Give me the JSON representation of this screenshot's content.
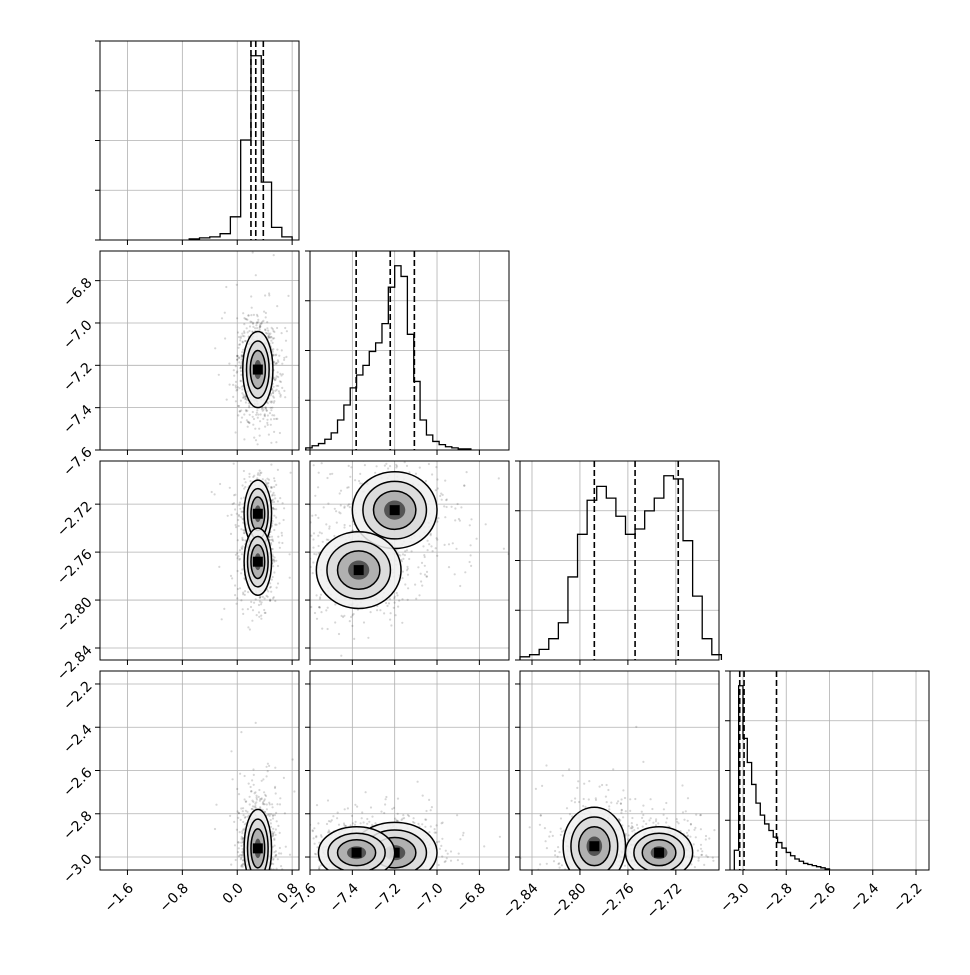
{
  "chart_data": {
    "type": "corner",
    "grid": true,
    "parameters": [
      {
        "range": [
          -2.0,
          0.9
        ],
        "ticks": [
          -1.6,
          -0.8,
          0.0,
          0.8
        ],
        "tick_labels": [
          "−1.6",
          "−0.8",
          "0.0",
          "0.8"
        ],
        "quantiles": [
          0.2,
          0.27,
          0.38
        ],
        "histogram": {
          "bins": [
            -0.7,
            -0.55,
            -0.4,
            -0.25,
            -0.1,
            0.05,
            0.2,
            0.35,
            0.5,
            0.65
          ],
          "counts": [
            1,
            2,
            3,
            6,
            22,
            95,
            175,
            55,
            12,
            3
          ],
          "peak": 175
        }
      },
      {
        "range": [
          -7.6,
          -6.66
        ],
        "ticks": [
          -7.6,
          -7.4,
          -7.2,
          -7.0,
          -6.8
        ],
        "tick_labels": [
          "−7.6",
          "−7.4",
          "−7.2",
          "−7.0",
          "−6.8"
        ],
        "quantiles": [
          -7.382,
          -7.221,
          -7.107
        ],
        "histogram": {
          "bins": [
            -7.62,
            -7.59,
            -7.56,
            -7.53,
            -7.5,
            -7.47,
            -7.44,
            -7.41,
            -7.38,
            -7.35,
            -7.32,
            -7.29,
            -7.26,
            -7.23,
            -7.2,
            -7.17,
            -7.14,
            -7.11,
            -7.08,
            -7.05,
            -7.02,
            -6.99,
            -6.96,
            -6.93,
            -6.9,
            -6.87
          ],
          "counts": [
            2,
            4,
            6,
            10,
            16,
            28,
            42,
            58,
            70,
            79,
            92,
            100,
            118,
            152,
            172,
            162,
            108,
            64,
            28,
            14,
            8,
            5,
            3,
            2,
            1,
            1
          ],
          "peak": 172
        }
      },
      {
        "range": [
          -2.85,
          -2.684
        ],
        "ticks": [
          -2.84,
          -2.8,
          -2.76,
          -2.72
        ],
        "tick_labels": [
          "−2.84",
          "−2.80",
          "−2.76",
          "−2.72"
        ],
        "quantiles": [
          -2.788,
          -2.754,
          -2.718
        ],
        "histogram": {
          "bins": [
            -2.85,
            -2.842,
            -2.834,
            -2.826,
            -2.818,
            -2.81,
            -2.802,
            -2.794,
            -2.786,
            -2.778,
            -2.77,
            -2.762,
            -2.754,
            -2.746,
            -2.738,
            -2.73,
            -2.722,
            -2.714,
            -2.706,
            -2.698,
            -2.69
          ],
          "counts": [
            3,
            5,
            10,
            20,
            35,
            78,
            118,
            150,
            163,
            152,
            135,
            118,
            123,
            140,
            152,
            173,
            170,
            112,
            60,
            20,
            5
          ],
          "peak": 173
        }
      },
      {
        "range": [
          -3.06,
          -2.14
        ],
        "ticks": [
          -3.0,
          -2.8,
          -2.6,
          -2.4,
          -2.2
        ],
        "tick_labels": [
          "−3.0",
          "−2.8",
          "−2.6",
          "−2.4",
          "−2.2"
        ],
        "quantiles": [
          -3.015,
          -2.995,
          -2.845
        ],
        "histogram": {
          "bins": [
            -3.04,
            -3.02,
            -3.0,
            -2.98,
            -2.96,
            -2.94,
            -2.92,
            -2.9,
            -2.88,
            -2.86,
            -2.84,
            -2.82,
            -2.8,
            -2.78,
            -2.76,
            -2.74,
            -2.72,
            -2.7,
            -2.68,
            -2.66,
            -2.64,
            -2.62
          ],
          "counts": [
            18,
            168,
            120,
            98,
            78,
            61,
            50,
            42,
            36,
            30,
            25,
            20,
            16,
            13,
            10,
            8,
            6,
            5,
            4,
            3,
            2,
            1
          ],
          "peak": 168
        }
      }
    ],
    "pairs": [
      {
        "row": 1,
        "col": 0,
        "modes": [
          {
            "mu": [
              0.3,
              -7.22
            ],
            "sd": [
              0.11,
              0.09
            ]
          }
        ]
      },
      {
        "row": 2,
        "col": 0,
        "modes": [
          {
            "mu": [
              0.3,
              -2.728
            ],
            "sd": [
              0.1,
              0.014
            ]
          },
          {
            "mu": [
              0.3,
              -2.768
            ],
            "sd": [
              0.1,
              0.014
            ]
          }
        ]
      },
      {
        "row": 2,
        "col": 1,
        "modes": [
          {
            "mu": [
              -7.2,
              -2.725
            ],
            "sd": [
              0.1,
              0.016
            ]
          },
          {
            "mu": [
              -7.37,
              -2.775
            ],
            "sd": [
              0.1,
              0.016
            ]
          }
        ]
      },
      {
        "row": 3,
        "col": 0,
        "modes": [
          {
            "mu": [
              0.3,
              -2.96
            ],
            "sd": [
              0.1,
              0.09
            ]
          }
        ]
      },
      {
        "row": 3,
        "col": 1,
        "modes": [
          {
            "mu": [
              -7.2,
              -2.98
            ],
            "sd": [
              0.1,
              0.07
            ]
          },
          {
            "mu": [
              -7.38,
              -2.98
            ],
            "sd": [
              0.09,
              0.06
            ]
          }
        ]
      },
      {
        "row": 3,
        "col": 2,
        "modes": [
          {
            "mu": [
              -2.734,
              -2.98
            ],
            "sd": [
              0.014,
              0.06
            ]
          },
          {
            "mu": [
              -2.788,
              -2.95
            ],
            "sd": [
              0.013,
              0.09
            ]
          }
        ]
      }
    ]
  }
}
